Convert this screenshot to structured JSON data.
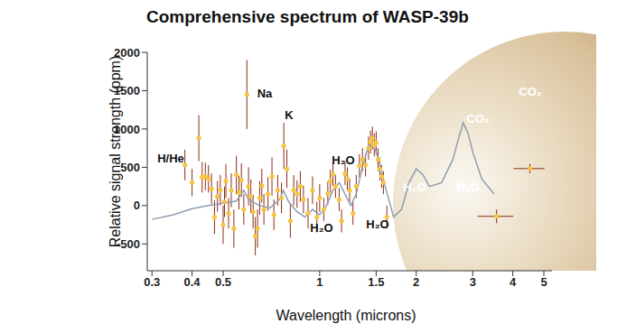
{
  "chart_data": {
    "type": "scatter",
    "title": "Comprehensive spectrum of WASP-39b",
    "x_label": "Wavelength (microns)",
    "y_label": "Relative signal strength (ppm)",
    "log": "x",
    "xlim": [
      0.29,
      5.3
    ],
    "xticks": [
      0.3,
      0.4,
      0.5,
      1,
      1.5,
      2,
      3,
      4,
      5
    ],
    "ylim": [
      -850,
      2000
    ],
    "yticks": [
      -500,
      0,
      500,
      1000,
      1500,
      2000
    ],
    "grid": false,
    "annotations": [
      "H/He",
      "Na",
      "K",
      "H₂O",
      "H₂O",
      "H₂O",
      "H₂O",
      "H₂O",
      "CO₂",
      "CO₂"
    ],
    "points": {
      "color": "#f5c542",
      "error_color": "#8c2d19",
      "marker": "circle",
      "x": [
        0.38,
        0.4,
        0.42,
        0.43,
        0.44,
        0.45,
        0.46,
        0.47,
        0.48,
        0.49,
        0.5,
        0.505,
        0.51,
        0.52,
        0.53,
        0.54,
        0.55,
        0.56,
        0.57,
        0.58,
        0.593,
        0.6,
        0.61,
        0.62,
        0.63,
        0.64,
        0.65,
        0.66,
        0.67,
        0.69,
        0.71,
        0.72,
        0.74,
        0.76,
        0.773,
        0.79,
        0.81,
        0.83,
        0.85,
        0.87,
        0.89,
        0.92,
        0.95,
        0.98,
        1.0,
        1.03,
        1.06,
        1.08,
        1.1,
        1.12,
        1.15,
        1.17,
        1.2,
        1.22,
        1.24,
        1.27,
        1.3,
        1.33,
        1.36,
        1.39,
        1.42,
        1.44,
        1.46,
        1.48,
        1.5,
        1.52,
        1.54,
        1.56,
        1.58,
        1.62,
        3.56,
        4.52
      ],
      "y": [
        530,
        300,
        880,
        370,
        380,
        350,
        220,
        -150,
        120,
        200,
        -250,
        50,
        320,
        -100,
        200,
        -300,
        400,
        170,
        330,
        -50,
        1450,
        250,
        120,
        -80,
        -400,
        -300,
        100,
        260,
        -50,
        150,
        380,
        -120,
        200,
        100,
        780,
        480,
        -200,
        200,
        150,
        250,
        80,
        -100,
        200,
        -150,
        100,
        -50,
        160,
        320,
        410,
        250,
        80,
        -200,
        420,
        350,
        200,
        -100,
        250,
        520,
        600,
        530,
        750,
        830,
        880,
        790,
        820,
        600,
        480,
        380,
        300,
        -150,
        -140,
        483
      ],
      "y_err": [
        200,
        180,
        300,
        200,
        180,
        180,
        200,
        220,
        200,
        200,
        250,
        200,
        220,
        200,
        220,
        250,
        250,
        220,
        220,
        200,
        450,
        250,
        220,
        220,
        250,
        250,
        220,
        220,
        200,
        220,
        250,
        200,
        200,
        200,
        300,
        250,
        220,
        200,
        180,
        200,
        180,
        200,
        180,
        200,
        180,
        150,
        150,
        150,
        150,
        150,
        150,
        150,
        150,
        150,
        150,
        150,
        150,
        150,
        150,
        150,
        150,
        150,
        150,
        150,
        150,
        150,
        150,
        150,
        150,
        150,
        90,
        60
      ],
      "x_err": [
        0,
        0,
        0,
        0,
        0,
        0,
        0,
        0,
        0,
        0,
        0,
        0,
        0,
        0,
        0,
        0,
        0,
        0,
        0,
        0,
        0,
        0,
        0,
        0,
        0,
        0,
        0,
        0,
        0,
        0,
        0,
        0,
        0,
        0,
        0,
        0,
        0,
        0,
        0,
        0,
        0,
        0,
        0,
        0,
        0,
        0,
        0,
        0,
        0,
        0,
        0,
        0,
        0,
        0,
        0,
        0,
        0,
        0,
        0,
        0,
        0,
        0,
        0,
        0,
        0,
        0,
        0,
        0,
        0,
        0,
        0.45,
        0.5
      ]
    },
    "model": {
      "color": "#8f9db0",
      "line_style": "solid",
      "x": [
        0.3,
        0.35,
        0.4,
        0.45,
        0.5,
        0.55,
        0.58,
        0.6,
        0.65,
        0.7,
        0.75,
        0.77,
        0.8,
        0.85,
        0.9,
        0.95,
        1.0,
        1.05,
        1.1,
        1.15,
        1.2,
        1.25,
        1.3,
        1.35,
        1.4,
        1.45,
        1.5,
        1.55,
        1.6,
        1.7,
        1.8,
        1.9,
        2.0,
        2.1,
        2.2,
        2.4,
        2.6,
        2.7,
        2.8,
        2.9,
        3.0,
        3.2,
        3.5
      ],
      "y": [
        -180,
        -120,
        -40,
        0,
        30,
        60,
        200,
        80,
        0,
        -30,
        80,
        200,
        50,
        -80,
        -150,
        -50,
        -120,
        0,
        200,
        300,
        150,
        0,
        150,
        450,
        700,
        830,
        700,
        500,
        250,
        -150,
        -50,
        300,
        480,
        400,
        250,
        300,
        600,
        850,
        1080,
        950,
        700,
        350,
        150
      ]
    }
  }
}
